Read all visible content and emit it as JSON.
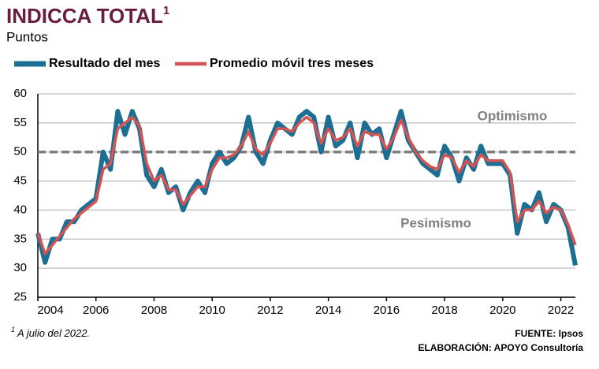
{
  "chart_data": {
    "type": "line",
    "title": "INDICCA TOTAL",
    "title_note": "1",
    "subtitle": "Puntos",
    "annotations": [
      "Optimismo",
      "Pesimismo"
    ],
    "reference_line": 50,
    "footnote_marker": "1",
    "footnote": "A julio del 2022.",
    "source": "FUENTE: Ipsos",
    "credit": "ELABORACIÓN: APOYO Consultoría",
    "x": [
      2004,
      2004.25,
      2004.5,
      2004.75,
      2005,
      2005.25,
      2005.5,
      2005.75,
      2006,
      2006.25,
      2006.5,
      2006.75,
      2007,
      2007.25,
      2007.5,
      2007.75,
      2008,
      2008.25,
      2008.5,
      2008.75,
      2009,
      2009.25,
      2009.5,
      2009.75,
      2010,
      2010.25,
      2010.5,
      2010.75,
      2011,
      2011.25,
      2011.5,
      2011.75,
      2012,
      2012.25,
      2012.5,
      2012.75,
      2013,
      2013.25,
      2013.5,
      2013.75,
      2014,
      2014.25,
      2014.5,
      2014.75,
      2015,
      2015.25,
      2015.5,
      2015.75,
      2016,
      2016.25,
      2016.5,
      2016.75,
      2017,
      2017.25,
      2017.5,
      2017.75,
      2018,
      2018.25,
      2018.5,
      2018.75,
      2019,
      2019.25,
      2019.5,
      2019.75,
      2020,
      2020.25,
      2020.5,
      2020.75,
      2021,
      2021.25,
      2021.5,
      2021.75,
      2022,
      2022.25,
      2022.5
    ],
    "series": [
      {
        "name": "Resultado del mes",
        "color": "#1c6e93",
        "values": [
          36,
          31,
          35,
          35,
          38,
          38,
          40,
          41,
          42,
          50,
          47,
          57,
          53,
          57,
          54,
          46,
          44,
          47,
          43,
          44,
          40,
          43,
          45,
          43,
          48,
          50,
          48,
          49,
          51,
          56,
          50,
          48,
          52,
          55,
          54,
          53,
          56,
          57,
          56,
          50,
          56,
          51,
          52,
          55,
          49,
          55,
          53,
          54,
          49,
          53,
          57,
          52,
          50,
          48,
          47,
          46,
          51,
          49,
          45,
          49,
          47,
          51,
          48,
          48,
          48,
          46,
          36,
          41,
          40,
          43,
          38,
          41,
          40,
          37,
          30.5
        ]
      },
      {
        "name": "Promedio móvil tres meses",
        "color": "#d45454",
        "values": [
          36,
          32.5,
          34,
          35.5,
          37,
          38.5,
          39.5,
          40.5,
          41.5,
          47,
          48,
          54,
          55,
          56,
          54.5,
          48,
          45,
          46,
          43.5,
          43.5,
          41,
          42.5,
          44,
          44,
          47,
          49,
          49,
          49.5,
          51,
          53.5,
          50.5,
          49.5,
          51.5,
          54,
          54,
          53.5,
          55,
          56,
          55,
          51.5,
          54,
          52,
          52.5,
          54,
          51,
          53.5,
          53,
          53,
          50.5,
          52.5,
          55.5,
          52.5,
          50,
          48.5,
          47.5,
          47,
          49.5,
          49,
          46.5,
          48.5,
          47.5,
          49.5,
          48.5,
          48.5,
          48.5,
          46.5,
          38,
          40,
          40,
          41.5,
          39.5,
          40.5,
          40,
          37.5,
          34
        ]
      }
    ],
    "xlim": [
      2004,
      2022.5
    ],
    "xticks": [
      2004,
      2006,
      2008,
      2010,
      2012,
      2014,
      2016,
      2018,
      2020,
      2022
    ],
    "ylim": [
      25,
      60
    ],
    "yticks": [
      25,
      30,
      35,
      40,
      45,
      50,
      55,
      60
    ],
    "grid": true
  }
}
